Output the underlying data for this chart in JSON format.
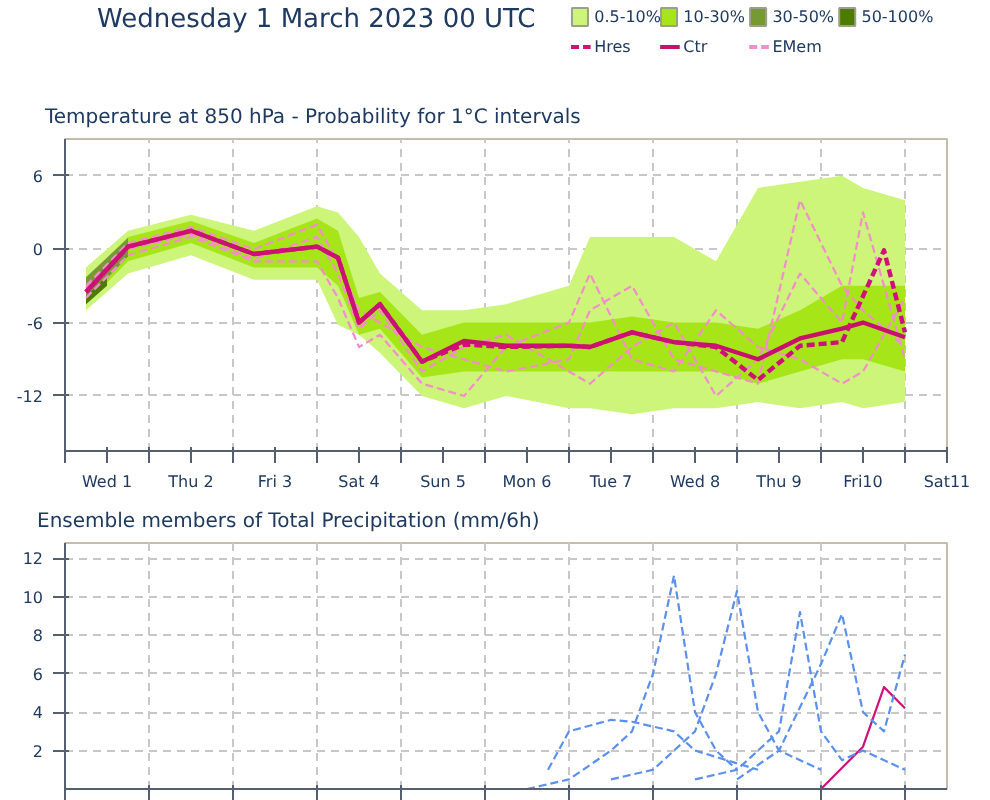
{
  "chart_data": [
    {
      "type": "line",
      "title": "Wednesday 1 March 2023 00 UTC",
      "subtitle": "Temperature at 850 hPa - Probability for 1°C intervals",
      "legend": "top right",
      "grid": true,
      "line_style": "solid",
      "marker": "none",
      "x": [
        "2023-03-01T06:00",
        "2023-03-01T18:00",
        "2023-03-02T12:00",
        "2023-03-03T06:00",
        "2023-03-04T00:00",
        "2023-03-04T06:00",
        "2023-03-04T12:00",
        "2023-03-04T18:00",
        "2023-03-05T06:00",
        "2023-03-05T18:00",
        "2023-03-06T06:00",
        "2023-03-07T00:00",
        "2023-03-07T06:00",
        "2023-03-07T18:00",
        "2023-03-08T06:00",
        "2023-03-08T18:00",
        "2023-03-09T06:00",
        "2023-03-09T18:00",
        "2023-03-10T06:00",
        "2023-03-10T12:00",
        "2023-03-11T00:00"
      ],
      "xlim": [
        "2023-03-01T00:00",
        "2023-03-11T12:00"
      ],
      "ylim": [
        -16.5,
        9
      ],
      "yticks": [
        -12,
        -6,
        0,
        6
      ],
      "xticks": [
        {
          "value": "2023-03-01T00:00",
          "label": null
        },
        {
          "value": "2023-03-01T12:00",
          "label": "Wed 1"
        },
        {
          "value": "2023-03-02T00:00",
          "label": null
        },
        {
          "value": "2023-03-02T12:00",
          "label": "Thu 2"
        },
        {
          "value": "2023-03-03T00:00",
          "label": null
        },
        {
          "value": "2023-03-03T12:00",
          "label": "Fri 3"
        },
        {
          "value": "2023-03-04T00:00",
          "label": null
        },
        {
          "value": "2023-03-04T12:00",
          "label": "Sat 4"
        },
        {
          "value": "2023-03-05T00:00",
          "label": null
        },
        {
          "value": "2023-03-05T12:00",
          "label": "Sun 5"
        },
        {
          "value": "2023-03-06T00:00",
          "label": null
        },
        {
          "value": "2023-03-06T12:00",
          "label": "Mon 6"
        },
        {
          "value": "2023-03-07T00:00",
          "label": null
        },
        {
          "value": "2023-03-07T12:00",
          "label": "Tue 7"
        },
        {
          "value": "2023-03-08T00:00",
          "label": null
        },
        {
          "value": "2023-03-08T12:00",
          "label": "Wed 8"
        },
        {
          "value": "2023-03-09T00:00",
          "label": null
        },
        {
          "value": "2023-03-09T12:00",
          "label": "Thu 9"
        },
        {
          "value": "2023-03-10T00:00",
          "label": null
        },
        {
          "value": "2023-03-10T12:00",
          "label": "Fri10"
        },
        {
          "value": "2023-03-11T00:00",
          "label": null
        },
        {
          "value": "2023-03-11T12:00",
          "label": "Sat11"
        }
      ],
      "series": [
        {
          "name": "0.5-10%",
          "type": "area",
          "color": "#ccf57a",
          "values": [
            null,
            null,
            null,
            null,
            null,
            null,
            null,
            null,
            null,
            null,
            null,
            null,
            null,
            null,
            null,
            null,
            null,
            null,
            null,
            null,
            null
          ],
          "lower": [
            -5,
            -2,
            -0.5,
            -2.5,
            -2.5,
            -6.2,
            -7,
            -8.5,
            -12,
            -13,
            -12,
            -13,
            -13,
            -13.5,
            -13,
            -13,
            -12.5,
            -13,
            -12.5,
            -13,
            -12.5
          ],
          "upper": [
            -1.5,
            1.5,
            2.8,
            1.5,
            3.5,
            3,
            1,
            -2,
            -5,
            -5,
            -4.5,
            -3,
            1,
            1,
            1,
            -1,
            5,
            5.5,
            6,
            5,
            4
          ]
        },
        {
          "name": "10-30%",
          "type": "area",
          "color": "#a6e619",
          "values": [
            null,
            null,
            null,
            null,
            null,
            null,
            null,
            null,
            null,
            null,
            null,
            null,
            null,
            null,
            null,
            null,
            null,
            null,
            null,
            null,
            null
          ],
          "lower": [
            -4.5,
            -1,
            0.5,
            -1.5,
            -1.5,
            -3,
            -7,
            -6.5,
            -10.5,
            -10,
            -10,
            -10,
            -10,
            -10,
            -10,
            -10,
            -11,
            -10,
            -9,
            -9,
            -10
          ],
          "upper": [
            -2.5,
            1,
            2.3,
            0.5,
            2.5,
            1.5,
            -4,
            -3.5,
            -7,
            -6,
            -6,
            -6,
            -6,
            -5.5,
            -6,
            -6,
            -6.5,
            -5,
            -3,
            -3,
            -3
          ]
        },
        {
          "name": "30-50%",
          "type": "area",
          "color": "#779933",
          "x": [
            "2023-03-01T06:00",
            "2023-03-01T18:00"
          ],
          "values": [
            null,
            null
          ],
          "lower": [
            -4.2,
            -0.6
          ],
          "upper": [
            -2.3,
            0.9
          ]
        },
        {
          "name": "50-100%",
          "type": "area",
          "color": "#4d7a00",
          "x": [
            "2023-03-01T06:00",
            "2023-03-01T12:00"
          ],
          "values": [
            null,
            null
          ],
          "lower": [
            -4.5,
            -3.0
          ],
          "upper": [
            -3.9,
            -2.2
          ]
        },
        {
          "name": "Hres",
          "type": "line",
          "line_style": "dashed",
          "color": "#d0107a",
          "x": [
            "2023-03-01T06:00",
            "2023-03-01T18:00",
            "2023-03-02T12:00",
            "2023-03-03T06:00",
            "2023-03-04T00:00",
            "2023-03-04T06:00",
            "2023-03-04T12:00",
            "2023-03-04T18:00",
            "2023-03-05T06:00",
            "2023-03-05T18:00",
            "2023-03-06T06:00",
            "2023-03-07T00:00",
            "2023-03-07T06:00",
            "2023-03-07T18:00",
            "2023-03-08T06:00",
            "2023-03-08T18:00",
            "2023-03-09T06:00",
            "2023-03-09T18:00",
            "2023-03-10T06:00",
            "2023-03-10T18:00",
            "2023-03-11T00:00"
          ],
          "values": [
            -3.5,
            0.2,
            1.5,
            -0.4,
            0.2,
            -0.7,
            -6,
            -4.5,
            -9.2,
            -7.8,
            -8,
            -7.9,
            -8,
            -6.8,
            -7.6,
            -8,
            -10.7,
            -7.9,
            -7.6,
            -0.1,
            -6.8
          ]
        },
        {
          "name": "Ctr",
          "type": "line",
          "line_style": "solid",
          "color": "#c8106e",
          "values": [
            -3.5,
            0.2,
            1.5,
            -0.4,
            0.2,
            -0.7,
            -6,
            -4.5,
            -9.2,
            -7.5,
            -7.9,
            -7.9,
            -8,
            -6.8,
            -7.6,
            -7.9,
            -9,
            -7.3,
            -6.5,
            -6,
            -7.2
          ]
        },
        {
          "name": "EMem",
          "type": "line",
          "line_style": "dashed",
          "color": "#f58ccc",
          "values": [
            -3,
            0.5,
            1.8,
            0,
            2,
            -1,
            -5,
            -6,
            -8,
            -9,
            -10,
            -9,
            -5,
            -3,
            -9,
            -10,
            -11,
            4,
            -3,
            -5,
            -8
          ]
        },
        {
          "type": "line",
          "line_style": "dashed",
          "color": "#f58ccc",
          "values": [
            -4,
            -0.5,
            1,
            -1,
            -1,
            -4,
            -8,
            -7,
            -11,
            -12,
            -8,
            -6,
            -2,
            -9,
            -10,
            -5,
            -8,
            -9,
            -11,
            -10,
            -4
          ]
        },
        {
          "type": "line",
          "line_style": "dashed",
          "color": "#f58ccc",
          "values": [
            -3.2,
            0,
            1.2,
            -0.8,
            1,
            -2,
            -6.5,
            -5,
            -10,
            -8,
            -7,
            -10,
            -11,
            -8,
            -6,
            -12,
            -9,
            -2,
            -6,
            3,
            -9
          ]
        }
      ]
    },
    {
      "type": "line",
      "title": "Ensemble members of Total Precipitation (mm/6h)",
      "grid": true,
      "line_style": "dashed",
      "marker": "none",
      "tick_labels": "y",
      "xlim": [
        "2023-03-01T00:00",
        "2023-03-11T12:00"
      ],
      "ylim": [
        0,
        12.8
      ],
      "yticks": [
        2,
        4,
        6,
        8,
        10,
        12
      ],
      "xticks": [
        {
          "value": "2023-03-01T00:00",
          "label": null
        },
        {
          "value": "2023-03-02T00:00",
          "label": null
        },
        {
          "value": "2023-03-03T00:00",
          "label": null
        },
        {
          "value": "2023-03-04T00:00",
          "label": null
        },
        {
          "value": "2023-03-05T00:00",
          "label": null
        },
        {
          "value": "2023-03-06T00:00",
          "label": null
        },
        {
          "value": "2023-03-07T00:00",
          "label": null
        },
        {
          "value": "2023-03-08T00:00",
          "label": null
        },
        {
          "value": "2023-03-09T00:00",
          "label": null
        },
        {
          "value": "2023-03-10T00:00",
          "label": null
        },
        {
          "value": "2023-03-11T00:00",
          "label": null
        }
      ],
      "series": [
        {
          "color": "#5b8ff0",
          "x": [
            "2023-03-06T12:00",
            "2023-03-07T00:00",
            "2023-03-07T12:00",
            "2023-03-07T18:00",
            "2023-03-08T00:00",
            "2023-03-08T06:00",
            "2023-03-08T12:00",
            "2023-03-08T18:00",
            "2023-03-09T00:00"
          ],
          "values": [
            0,
            0.5,
            2,
            3,
            6,
            11.1,
            4,
            2,
            1
          ]
        },
        {
          "color": "#5b8ff0",
          "x": [
            "2023-03-07T12:00",
            "2023-03-08T00:00",
            "2023-03-08T12:00",
            "2023-03-08T18:00",
            "2023-03-09T00:00",
            "2023-03-09T06:00",
            "2023-03-09T12:00",
            "2023-03-10T00:00"
          ],
          "values": [
            0.5,
            1,
            3,
            6,
            10.3,
            4,
            2,
            1
          ]
        },
        {
          "color": "#5b8ff0",
          "x": [
            "2023-03-08T12:00",
            "2023-03-09T00:00",
            "2023-03-09T12:00",
            "2023-03-09T18:00",
            "2023-03-10T00:00",
            "2023-03-10T06:00",
            "2023-03-10T12:00",
            "2023-03-11T00:00"
          ],
          "values": [
            0.5,
            1,
            3,
            9.2,
            3,
            1.5,
            2,
            1
          ]
        },
        {
          "color": "#5b8ff0",
          "x": [
            "2023-03-09T00:00",
            "2023-03-09T12:00",
            "2023-03-10T00:00",
            "2023-03-10T06:00",
            "2023-03-10T12:00",
            "2023-03-10T18:00",
            "2023-03-11T00:00"
          ],
          "values": [
            0.5,
            2,
            6.5,
            9.1,
            4,
            3,
            7
          ]
        },
        {
          "color": "#5b8ff0",
          "x": [
            "2023-03-06T18:00",
            "2023-03-07T00:00",
            "2023-03-07T12:00",
            "2023-03-07T18:00",
            "2023-03-08T06:00",
            "2023-03-08T12:00",
            "2023-03-09T06:00"
          ],
          "values": [
            1,
            3,
            3.6,
            3.5,
            3,
            2,
            1
          ]
        },
        {
          "color": "#d0107a",
          "line_style": "solid",
          "x": [
            "2023-03-10T00:00",
            "2023-03-10T12:00",
            "2023-03-10T18:00",
            "2023-03-11T00:00"
          ],
          "values": [
            0,
            2.2,
            5.3,
            4.2
          ]
        }
      ]
    }
  ]
}
